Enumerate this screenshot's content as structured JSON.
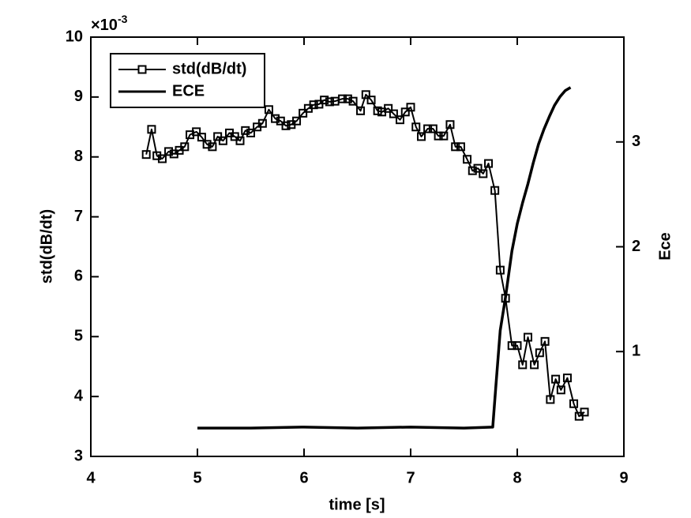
{
  "chart_data": {
    "type": "line",
    "xlabel": "time [s]",
    "ylabel": "std(dB/dt)",
    "y2label": "Ece",
    "y_multiplier": "×10",
    "y_multiplier_exp": "-3",
    "xlim": [
      4,
      9
    ],
    "xticks": [
      4,
      5,
      6,
      7,
      8,
      9
    ],
    "ylim": [
      3,
      10
    ],
    "yticks": [
      3,
      4,
      5,
      6,
      7,
      8,
      9,
      10
    ],
    "y2lim": [
      0,
      4
    ],
    "y2ticks": [
      1,
      2,
      3
    ],
    "legend": "upper left",
    "series": [
      {
        "name": "std(dB/dt)",
        "color": "#000000",
        "marker": "square",
        "x": [
          4.52,
          4.57,
          4.62,
          4.67,
          4.73,
          4.78,
          4.83,
          4.88,
          4.93,
          4.99,
          5.04,
          5.09,
          5.14,
          5.19,
          5.24,
          5.3,
          5.35,
          5.4,
          5.45,
          5.5,
          5.56,
          5.61,
          5.67,
          5.73,
          5.78,
          5.83,
          5.88,
          5.93,
          5.99,
          6.04,
          6.09,
          6.14,
          6.19,
          6.24,
          6.29,
          6.36,
          6.41,
          6.46,
          6.53,
          6.58,
          6.63,
          6.69,
          6.73,
          6.79,
          6.84,
          6.9,
          6.95,
          7.0,
          7.05,
          7.1,
          7.16,
          7.21,
          7.26,
          7.31,
          7.37,
          7.42,
          7.47,
          7.53,
          7.58,
          7.63,
          7.68,
          7.73,
          7.79,
          7.84,
          7.89,
          7.95,
          8.0,
          8.05,
          8.1,
          8.16,
          8.21,
          8.26,
          8.31,
          8.36,
          8.41,
          8.47,
          8.53,
          8.58,
          8.63
        ],
        "values": [
          8.04,
          8.46,
          8.02,
          7.97,
          8.09,
          8.05,
          8.11,
          8.17,
          8.37,
          8.42,
          8.33,
          8.21,
          8.17,
          8.34,
          8.27,
          8.4,
          8.34,
          8.27,
          8.44,
          8.4,
          8.5,
          8.56,
          8.79,
          8.64,
          8.6,
          8.52,
          8.54,
          8.6,
          8.73,
          8.81,
          8.87,
          8.88,
          8.95,
          8.92,
          8.93,
          8.97,
          8.97,
          8.93,
          8.77,
          9.04,
          8.95,
          8.77,
          8.75,
          8.81,
          8.72,
          8.62,
          8.75,
          8.83,
          8.5,
          8.34,
          8.47,
          8.47,
          8.35,
          8.35,
          8.54,
          8.17,
          8.17,
          7.96,
          7.77,
          7.81,
          7.72,
          7.89,
          7.44,
          6.11,
          5.64,
          4.85,
          4.85,
          4.53,
          4.99,
          4.53,
          4.73,
          4.92,
          3.95,
          4.29,
          4.11,
          4.31,
          3.88,
          3.67,
          3.74
        ]
      },
      {
        "name": "ECE",
        "color": "#000000",
        "axis": "y2",
        "x": [
          5.0,
          5.5,
          6.0,
          6.5,
          7.0,
          7.5,
          7.77,
          7.8,
          7.84,
          7.89,
          7.95,
          8.0,
          8.05,
          8.1,
          8.15,
          8.2,
          8.25,
          8.3,
          8.35,
          8.4,
          8.45,
          8.5
        ],
        "values": [
          0.27,
          0.27,
          0.28,
          0.27,
          0.28,
          0.27,
          0.28,
          0.68,
          1.2,
          1.52,
          1.96,
          2.22,
          2.42,
          2.6,
          2.8,
          2.98,
          3.12,
          3.24,
          3.35,
          3.43,
          3.49,
          3.52
        ]
      }
    ]
  }
}
